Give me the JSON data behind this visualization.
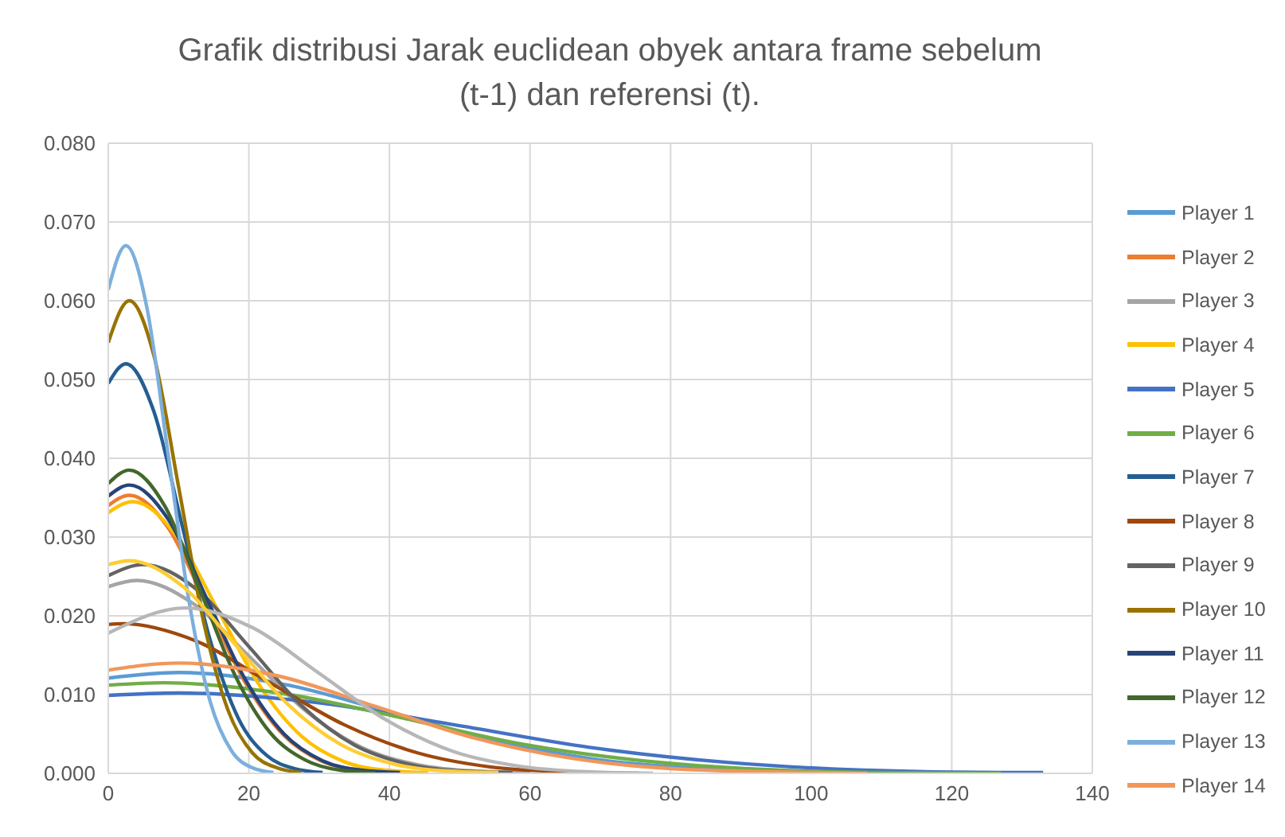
{
  "chart_data": {
    "type": "line",
    "title": "Grafik distribusi Jarak euclidean obyek antara frame sebelum (t-1) dan referensi (t).",
    "xlim": [
      0,
      140
    ],
    "xticks": [
      0,
      20,
      40,
      60,
      80,
      100,
      120,
      140
    ],
    "ylim": [
      0,
      0.08
    ],
    "yticks": [
      {
        "value": 0,
        "label": "0.000"
      },
      {
        "value": 0.01,
        "label": "0.010"
      },
      {
        "value": 0.02,
        "label": "0.020"
      },
      {
        "value": 0.03,
        "label": "0.030"
      },
      {
        "value": 0.04,
        "label": "0.040"
      },
      {
        "value": 0.05,
        "label": "0.050"
      },
      {
        "value": 0.06,
        "label": "0.060"
      },
      {
        "value": 0.07,
        "label": "0.070"
      },
      {
        "value": 0.08,
        "label": "0.080"
      }
    ],
    "grid": true,
    "legend": "right",
    "marker": "none",
    "line_style": "solid",
    "series": [
      {
        "name": "Player 1",
        "color": "#5b9bd5",
        "x": [
          0,
          10,
          25,
          40,
          55,
          70,
          85,
          100,
          115
        ],
        "values": [
          0.0121,
          0.0128,
          0.0113,
          0.0078,
          0.0042,
          0.0017,
          0.0006,
          0.0001,
          0
        ]
      },
      {
        "name": "Player 2",
        "color": "#ed7d31",
        "x": [
          0,
          3,
          8.5,
          14,
          19.5,
          25,
          30.5,
          36,
          41.5
        ],
        "values": [
          0.034,
          0.0353,
          0.0312,
          0.0214,
          0.0115,
          0.0048,
          0.0015,
          0.0004,
          0.0001
        ]
      },
      {
        "name": "Player 3",
        "color": "#a5a5a5",
        "x": [
          0,
          4,
          12,
          20,
          28,
          36,
          44,
          52,
          60
        ],
        "values": [
          0.0237,
          0.0245,
          0.0216,
          0.0149,
          0.008,
          0.0033,
          0.0011,
          0.0003,
          0.0001
        ]
      },
      {
        "name": "Player 4",
        "color": "#ffc000",
        "x": [
          0,
          3.5,
          9.5,
          15.5,
          21.5,
          27.5,
          33.5,
          39.5,
          45.5
        ],
        "values": [
          0.0331,
          0.0345,
          0.0304,
          0.0209,
          0.0112,
          0.0047,
          0.0015,
          0.0004,
          0.0001
        ]
      },
      {
        "name": "Player 5",
        "color": "#4472c4",
        "x": [
          0,
          10,
          29.5,
          49,
          68.5,
          88,
          107.5,
          127,
          133
        ],
        "values": [
          0.0099,
          0.0102,
          0.009,
          0.0062,
          0.0033,
          0.0014,
          0.0004,
          0.0001,
          0.0001
        ]
      },
      {
        "name": "Player 6",
        "color": "#70ad47",
        "x": [
          0,
          8,
          25,
          42,
          59,
          76,
          93,
          110,
          127
        ],
        "values": [
          0.0112,
          0.0115,
          0.0101,
          0.007,
          0.0037,
          0.0016,
          0.0005,
          0.0001,
          0
        ]
      },
      {
        "name": "Player 7",
        "color": "#255e91",
        "x": [
          0,
          2.5,
          6.5,
          10.5,
          14.5,
          18.5,
          22.5,
          26.5,
          30.5
        ],
        "values": [
          0.0495,
          0.052,
          0.0459,
          0.0315,
          0.0169,
          0.007,
          0.0023,
          0.0006,
          0.0001
        ]
      },
      {
        "name": "Player 8",
        "color": "#9e480e",
        "x": [
          0,
          2,
          12.5,
          23,
          33.5,
          44,
          54.5,
          65,
          75.5
        ],
        "values": [
          0.0189,
          0.019,
          0.0168,
          0.0115,
          0.0062,
          0.0026,
          0.0008,
          0.0002,
          0
        ]
      },
      {
        "name": "Player 9",
        "color": "#636363",
        "x": [
          0,
          5,
          12.5,
          20,
          27.5,
          35,
          42.5,
          50,
          57.5
        ],
        "values": [
          0.0251,
          0.0265,
          0.0234,
          0.0161,
          0.0086,
          0.0036,
          0.0012,
          0.0003,
          0.0001
        ]
      },
      {
        "name": "Player 10",
        "color": "#997300",
        "x": [
          0,
          3,
          6.5,
          10,
          13.5,
          17,
          20.5,
          24,
          27.5
        ],
        "values": [
          0.0547,
          0.06,
          0.053,
          0.0364,
          0.0195,
          0.0081,
          0.0026,
          0.0007,
          0.0001
        ]
      },
      {
        "name": "Player 11",
        "color": "#264478",
        "x": [
          0,
          3,
          8.5,
          14,
          19.5,
          25,
          30.5,
          36,
          41.5
        ],
        "values": [
          0.0352,
          0.0366,
          0.0323,
          0.0222,
          0.0119,
          0.005,
          0.0016,
          0.0004,
          0.0001
        ]
      },
      {
        "name": "Player 12",
        "color": "#43682b",
        "x": [
          0,
          3,
          8,
          13,
          18,
          23,
          28,
          33,
          38
        ],
        "values": [
          0.0368,
          0.0385,
          0.034,
          0.0234,
          0.0125,
          0.0052,
          0.0017,
          0.0004,
          0.0001
        ]
      },
      {
        "name": "Player 13",
        "color": "#7cafdd",
        "x": [
          0,
          2.5,
          5.5,
          8.5,
          11.5,
          14.5,
          17.5,
          20.5,
          23.5
        ],
        "values": [
          0.0614,
          0.067,
          0.0591,
          0.0406,
          0.0218,
          0.0091,
          0.0029,
          0.0007,
          0.0001
        ]
      },
      {
        "name": "Player 14",
        "color": "#f1975a",
        "x": [
          0,
          10,
          24,
          38,
          52,
          66,
          80,
          94,
          108
        ],
        "values": [
          0.0131,
          0.014,
          0.0124,
          0.0085,
          0.0045,
          0.0019,
          0.0006,
          0.0002,
          0
        ]
      },
      {
        "color": "#b7b7b7",
        "x": [
          0,
          11,
          20.5,
          30,
          39.5,
          49,
          58.5,
          68,
          77.5
        ],
        "values": [
          0.0178,
          0.021,
          0.0185,
          0.0127,
          0.0068,
          0.0028,
          0.0009,
          0.0002,
          0
        ]
      },
      {
        "color": "#ffcd33",
        "x": [
          0,
          3,
          10.5,
          18,
          25.5,
          33,
          40.5,
          48,
          55.5
        ],
        "values": [
          0.0265,
          0.027,
          0.0238,
          0.0164,
          0.0088,
          0.0037,
          0.0012,
          0.0003,
          0.0001
        ]
      }
    ]
  }
}
